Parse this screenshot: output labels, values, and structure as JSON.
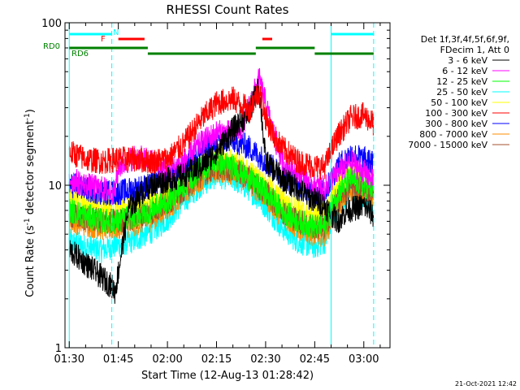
{
  "chart_data": {
    "type": "line",
    "title": "RHESSI Count Rates",
    "xlabel": "Start Time (12-Aug-13 01:28:42)",
    "ylabel": "Count Rate (s⁻¹ detector segment⁻¹)",
    "ylabel_parts": {
      "prefix": "Count Rate (s",
      "exp1": "-1",
      "middle": " detector segment",
      "exp2": "-1",
      "suffix": ")"
    },
    "y_scale": "log",
    "ylim": [
      1,
      100
    ],
    "xlim": [
      "01:28:42",
      "03:08:00"
    ],
    "x_tick_labels": [
      "01:30",
      "01:45",
      "02:00",
      "02:15",
      "02:30",
      "02:45",
      "03:00"
    ],
    "x_tick_minutes": [
      90,
      105,
      120,
      135,
      150,
      165,
      180
    ],
    "y_tick_labels": [
      "1",
      "10",
      "100"
    ],
    "y_tick_values": [
      1,
      10,
      100
    ],
    "grid": false,
    "legend_position": "right",
    "legend_header": [
      "Det 1f,3f,4f,5f,6f,9f,",
      "FDecim 1, Att 0"
    ],
    "series": [
      {
        "name": "3 - 6 keV",
        "color": "#000000",
        "x": [
          90,
          95,
          100,
          103,
          104,
          108,
          112,
          115,
          118,
          122,
          125,
          130,
          135,
          140,
          145,
          148,
          150,
          155,
          160,
          163,
          168,
          172,
          175,
          180,
          183
        ],
        "y": [
          4.0,
          3.3,
          2.7,
          2.4,
          2.2,
          7,
          9,
          10,
          10.5,
          11,
          11.5,
          13,
          16,
          22,
          28,
          40,
          14,
          11,
          9.5,
          8.5,
          7.5,
          6,
          7,
          7.5,
          6.5
        ]
      },
      {
        "name": "6 - 12 keV",
        "color": "#ff00ff",
        "x": [
          90,
          95,
          100,
          104,
          105,
          110,
          115,
          120,
          125,
          130,
          135,
          140,
          143,
          146,
          148,
          150,
          152,
          155,
          160,
          165,
          168,
          172,
          176,
          180,
          183
        ],
        "y": [
          11,
          10,
          9.5,
          9,
          13,
          15,
          14,
          12,
          14,
          18,
          21,
          21,
          23,
          35,
          45,
          32,
          22,
          14,
          12,
          10,
          9.5,
          12,
          14,
          12,
          11
        ]
      },
      {
        "name": "12 - 25 keV",
        "color": "#00ff00",
        "x": [
          90,
          95,
          100,
          105,
          110,
          115,
          120,
          125,
          130,
          135,
          140,
          145,
          150,
          155,
          160,
          165,
          168,
          172,
          176,
          180,
          183
        ],
        "y": [
          7,
          6.5,
          6,
          6,
          6.5,
          7,
          8,
          10,
          12.5,
          14,
          13,
          11,
          9,
          7,
          6,
          5.5,
          5.5,
          9,
          11,
          10,
          9.5
        ]
      },
      {
        "name": "25 - 50 keV",
        "color": "#00ffff",
        "x": [
          90,
          95,
          100,
          105,
          110,
          115,
          120,
          125,
          130,
          135,
          140,
          145,
          150,
          155,
          160,
          165,
          168,
          172,
          176,
          180,
          183
        ],
        "y": [
          4.5,
          4.2,
          4,
          4.3,
          4.6,
          5.2,
          6.2,
          8,
          10,
          11.5,
          11,
          9.5,
          7.5,
          5.5,
          4.5,
          4.2,
          4.5,
          7.5,
          9.5,
          8.5,
          8
        ]
      },
      {
        "name": "50 - 100 keV",
        "color": "#ffff00",
        "x": [
          90,
          95,
          100,
          105,
          110,
          115,
          120,
          125,
          130,
          135,
          140,
          145,
          150,
          155,
          160,
          165,
          168,
          172,
          176,
          180,
          183
        ],
        "y": [
          8,
          7.5,
          7,
          7.2,
          7.5,
          8,
          9,
          11,
          13,
          14.5,
          14,
          12,
          10,
          8,
          7,
          6.5,
          6.5,
          10,
          12,
          11,
          10
        ]
      },
      {
        "name": "100 - 300 keV",
        "color": "#ff0000",
        "x": [
          90,
          95,
          100,
          105,
          110,
          115,
          120,
          125,
          130,
          135,
          140,
          145,
          148,
          150,
          152,
          155,
          160,
          165,
          168,
          172,
          176,
          180,
          183
        ],
        "y": [
          16,
          14.5,
          14,
          14.5,
          14.5,
          14,
          14.5,
          18,
          25,
          32,
          34,
          29,
          38,
          26,
          21,
          17,
          14,
          13,
          13,
          20,
          26,
          27,
          24
        ]
      },
      {
        "name": "300 - 800 keV",
        "color": "#0000ff",
        "x": [
          90,
          95,
          100,
          105,
          110,
          115,
          120,
          125,
          130,
          135,
          140,
          145,
          150,
          155,
          160,
          165,
          168,
          172,
          176,
          180,
          183
        ],
        "y": [
          10,
          9.5,
          9,
          9,
          9.5,
          10,
          11,
          13,
          16,
          18.5,
          19,
          17,
          14,
          11.5,
          10,
          9,
          9,
          13,
          15.5,
          14.5,
          13.5
        ]
      },
      {
        "name": "800 - 7000 keV",
        "color": "#ff8c00",
        "x": [
          90,
          95,
          100,
          105,
          110,
          115,
          120,
          125,
          130,
          135,
          140,
          145,
          150,
          155,
          160,
          165,
          168,
          172,
          176,
          180,
          183
        ],
        "y": [
          6,
          5.8,
          5.5,
          5.5,
          5.8,
          6.2,
          7.2,
          9,
          11,
          12.5,
          12,
          10.5,
          8.5,
          6.5,
          5.5,
          5,
          5,
          7.5,
          9.5,
          9,
          8.5
        ]
      },
      {
        "name": "7000 - 15000 keV",
        "color": "#a0522d",
        "x": [
          90,
          95,
          100,
          105,
          110,
          115,
          120,
          125,
          130,
          135,
          140,
          145,
          150,
          155,
          160,
          165,
          168,
          172,
          176,
          180,
          183
        ],
        "y": [
          6.5,
          6.3,
          6,
          6,
          6.3,
          6.8,
          7.8,
          9.5,
          11.5,
          13,
          12.5,
          11,
          9,
          7,
          6,
          5.5,
          5.5,
          8,
          10,
          9.5,
          9
        ]
      }
    ],
    "annotations": {
      "rd0_label": "RD0",
      "rd6_label": "RD6",
      "f_label": "F",
      "n_label": "N",
      "n_color": "#00ffff",
      "f_color": "#ff0000",
      "rd_color": "#008000",
      "flag_bar_minutes": {
        "cyan": [
          [
            90,
            103
          ],
          [
            170,
            183
          ]
        ],
        "red": [
          [
            105,
            113
          ],
          [
            149,
            152
          ]
        ],
        "green_upper": [
          [
            90,
            114
          ],
          [
            147,
            165
          ]
        ],
        "green_lower": [
          [
            114,
            147
          ],
          [
            165,
            183
          ]
        ]
      },
      "solid_vlines_minutes": [
        90,
        170
      ],
      "dashed_vlines_minutes": [
        103,
        183
      ]
    },
    "timestamp": "21-Oct-2021 12:42"
  }
}
